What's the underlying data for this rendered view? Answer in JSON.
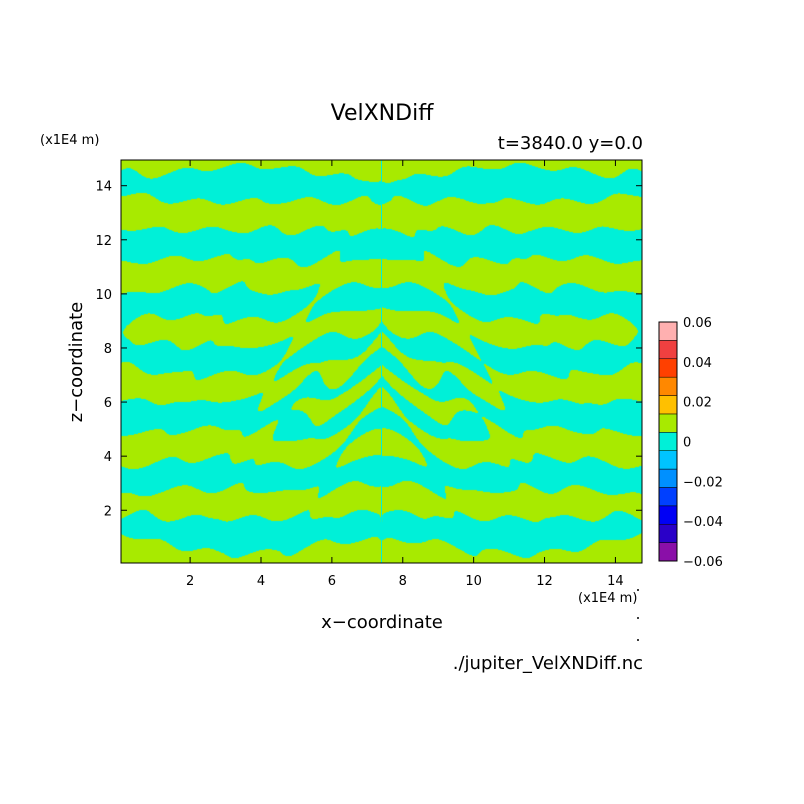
{
  "chart_data": {
    "type": "heatmap",
    "title": "VelXNDiff",
    "subtitle": "t=3840.0 y=0.0",
    "xlabel": "x−coordinate",
    "ylabel": "z−coordinate",
    "x_unit": "(x1E4 m)",
    "y_unit": "(x1E4 m)",
    "xlim": [
      0.05,
      14.75
    ],
    "ylim": [
      0.05,
      14.95
    ],
    "x_ticks": [
      "2",
      "4",
      "6",
      "8",
      "10",
      "12",
      "14"
    ],
    "y_ticks": [
      "2",
      "4",
      "6",
      "8",
      "10",
      "12",
      "14"
    ],
    "x_tick_values": [
      2,
      4,
      6,
      8,
      10,
      12,
      14
    ],
    "y_tick_values": [
      2,
      4,
      6,
      8,
      10,
      12,
      14
    ],
    "colorbar": {
      "levels": [
        -0.06,
        -0.05,
        -0.04,
        -0.03,
        -0.02,
        -0.01,
        0,
        0.01,
        0.02,
        0.03,
        0.04,
        0.05,
        0.06
      ],
      "colors": [
        "#8a0fa8",
        "#2a00c8",
        "#0000f5",
        "#0040ff",
        "#0090ff",
        "#00c4ff",
        "#00f0d8",
        "#a8ea00",
        "#ffc000",
        "#ff8800",
        "#ff4000",
        "#f04040",
        "#ffb0b0"
      ],
      "tick_labels": [
        "0.06",
        "0.04",
        "0.02",
        "0",
        "−0.02",
        "−0.04",
        "−0.06"
      ],
      "tick_values": [
        0.06,
        0.04,
        0.02,
        0,
        -0.02,
        -0.04,
        -0.06
      ]
    },
    "dominant_levels": {
      "positive_color": "#a8ea00",
      "negative_color": "#00f0d8"
    },
    "source_file": "./jupiter_VelXNDiff.nc"
  }
}
